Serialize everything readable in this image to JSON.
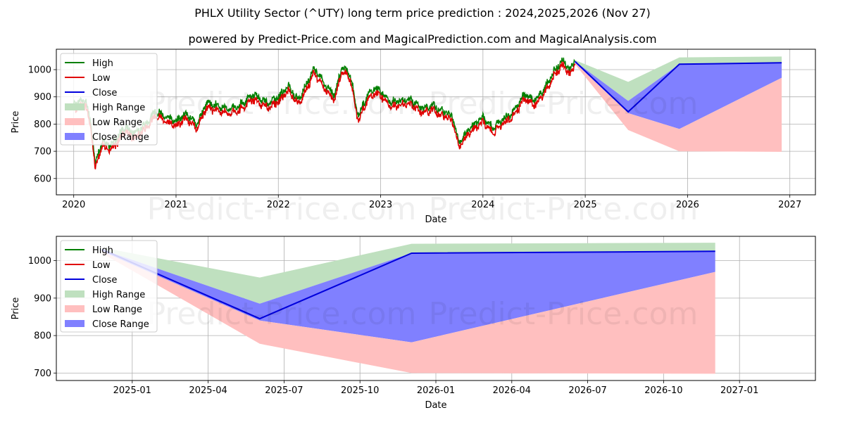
{
  "title": "PHLX Utility Sector (^UTY) long term price prediction : 2024,2025,2026 (Nov 27)",
  "subtitle": "powered by Predict-Price.com and MagicalPrediction.com and MagicalAnalysis.com",
  "watermark": "Predict-Price.com",
  "colors": {
    "high": "#008000",
    "low": "#e00000",
    "close": "#0000dd",
    "high_range": "#bfe0bf",
    "low_range": "#ffbfbf",
    "close_range": "#8080ff",
    "grid": "#b0b0b0"
  },
  "legend": [
    "High",
    "Low",
    "Close",
    "High Range",
    "Low Range",
    "Close Range"
  ],
  "chart_data": [
    {
      "type": "line",
      "title": "",
      "xlabel": "Date",
      "ylabel": "Price",
      "xlim": [
        2019.83,
        2027.25
      ],
      "ylim": [
        540,
        1075
      ],
      "x_ticks": [
        2020,
        2021,
        2022,
        2023,
        2024,
        2025,
        2026,
        2027
      ],
      "x_tick_labels": [
        "2020",
        "2021",
        "2022",
        "2023",
        "2024",
        "2025",
        "2026",
        "2027"
      ],
      "y_ticks": [
        600,
        700,
        800,
        900,
        1000
      ],
      "y_tick_labels": [
        "600",
        "700",
        "800",
        "900",
        "1000"
      ],
      "history_anchors": {
        "x": [
          2020.0,
          2020.12,
          2020.18,
          2020.21,
          2020.24,
          2020.28,
          2020.35,
          2020.42,
          2020.5,
          2020.6,
          2020.7,
          2020.8,
          2020.9,
          2021.0,
          2021.1,
          2021.2,
          2021.3,
          2021.45,
          2021.6,
          2021.75,
          2021.9,
          2022.0,
          2022.1,
          2022.2,
          2022.28,
          2022.35,
          2022.45,
          2022.55,
          2022.62,
          2022.7,
          2022.78,
          2022.85,
          2022.92,
          2023.0,
          2023.1,
          2023.2,
          2023.3,
          2023.4,
          2023.5,
          2023.6,
          2023.7,
          2023.77,
          2023.85,
          2024.0,
          2024.1,
          2024.2,
          2024.3,
          2024.4,
          2024.5,
          2024.6,
          2024.7,
          2024.78,
          2024.85,
          2024.9
        ],
        "close": [
          865,
          880,
          760,
          640,
          690,
          730,
          710,
          740,
          780,
          760,
          790,
          840,
          820,
          805,
          830,
          790,
          870,
          855,
          850,
          900,
          870,
          890,
          930,
          880,
          940,
          1000,
          940,
          900,
          1000,
          980,
          820,
          880,
          920,
          915,
          870,
          880,
          880,
          850,
          860,
          840,
          820,
          720,
          770,
          815,
          780,
          810,
          840,
          900,
          880,
          920,
          990,
          1030,
          985,
          1030
        ]
      },
      "forecast": {
        "x": [
          2024.9,
          2025.42,
          2025.92,
          2026.92
        ],
        "close": [
          1030,
          845,
          1020,
          1025
        ],
        "high_range_upper": [
          1035,
          955,
          1045,
          1048
        ],
        "high_range_lower": [
          1030,
          885,
          1020,
          1025
        ],
        "close_range_upper": [
          1030,
          885,
          1020,
          1025
        ],
        "close_range_lower": [
          1025,
          840,
          782,
          970
        ],
        "low_range_upper": [
          1025,
          840,
          782,
          970
        ],
        "low_range_lower": [
          1020,
          778,
          700,
          698
        ]
      }
    },
    {
      "type": "line",
      "title": "",
      "xlabel": "Date",
      "ylabel": "Price",
      "xlim": [
        2024.75,
        2027.25
      ],
      "ylim": [
        680,
        1065
      ],
      "x_ticks": [
        2025.0,
        2025.25,
        2025.5,
        2025.75,
        2026.0,
        2026.25,
        2026.5,
        2026.75,
        2027.0
      ],
      "x_tick_labels": [
        "2025-01",
        "2025-04",
        "2025-07",
        "2025-10",
        "2026-01",
        "2026-04",
        "2026-07",
        "2026-10",
        "2027-01"
      ],
      "y_ticks": [
        700,
        800,
        900,
        1000
      ],
      "y_tick_labels": [
        "700",
        "800",
        "900",
        "1000"
      ],
      "forecast": {
        "x": [
          2024.9,
          2025.42,
          2025.92,
          2026.92
        ],
        "close": [
          1030,
          845,
          1020,
          1025
        ],
        "high_range_upper": [
          1035,
          955,
          1045,
          1048
        ],
        "high_range_lower": [
          1030,
          885,
          1020,
          1025
        ],
        "close_range_upper": [
          1030,
          885,
          1020,
          1025
        ],
        "close_range_lower": [
          1025,
          840,
          782,
          970
        ],
        "low_range_upper": [
          1025,
          840,
          782,
          970
        ],
        "low_range_lower": [
          1020,
          778,
          700,
          698
        ]
      }
    }
  ]
}
